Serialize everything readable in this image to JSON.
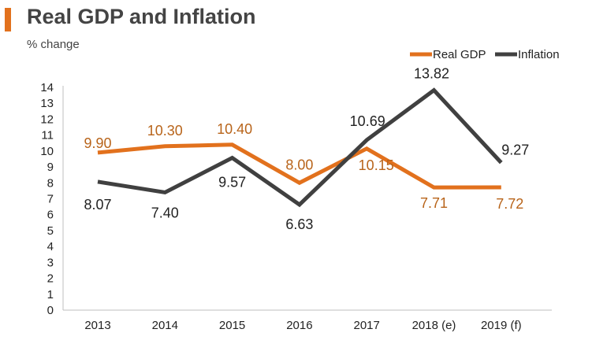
{
  "colors": {
    "accent": "#E2711D",
    "real_gdp": "#E2711D",
    "inflation": "#404040",
    "real_gdp_label": "#B8641A",
    "axis": "#BFBFBF",
    "text": "#222222"
  },
  "chart_data": {
    "type": "line",
    "title": "Real GDP and Inflation",
    "ylabel": "% change",
    "xlabel": "",
    "categories": [
      "2013",
      "2014",
      "2015",
      "2016",
      "2017",
      "2018 (e)",
      "2019 (f)"
    ],
    "ylim": [
      0,
      14
    ],
    "yticks": [
      "0",
      "1",
      "2",
      "3",
      "4",
      "5",
      "6",
      "7",
      "8",
      "9",
      "10",
      "11",
      "12",
      "13",
      "14"
    ],
    "legend_position": "top-right",
    "grid": false,
    "series": [
      {
        "name": "Real GDP",
        "values": [
          9.9,
          10.3,
          10.4,
          8.0,
          10.15,
          7.71,
          7.72
        ],
        "labels": [
          "9.90",
          "10.30",
          "10.40",
          "8.00",
          "10.15",
          "7.71",
          "7.72"
        ]
      },
      {
        "name": "Inflation",
        "values": [
          8.07,
          7.4,
          9.57,
          6.63,
          10.69,
          13.82,
          9.27
        ],
        "labels": [
          "8.07",
          "7.40",
          "9.57",
          "6.63",
          "10.69",
          "13.82",
          "9.27"
        ]
      }
    ]
  }
}
